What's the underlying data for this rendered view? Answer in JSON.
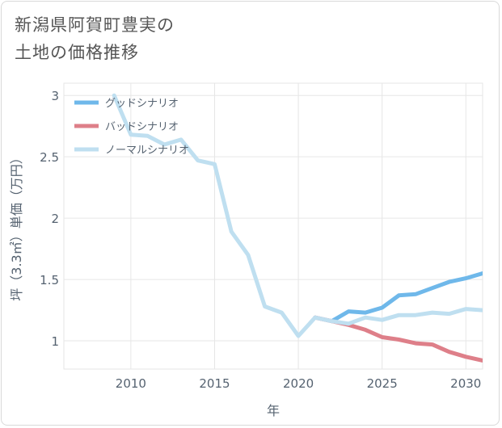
{
  "title": {
    "line1": "新潟県阿賀町豊実の",
    "line2": "土地の価格推移"
  },
  "chart_data": {
    "type": "line",
    "xlabel": "年",
    "ylabel": "坪（3.3㎡）単価（万円）",
    "xlim": [
      2006,
      2031
    ],
    "ylim": [
      0.77,
      3.1
    ],
    "xticks": [
      2010,
      2015,
      2020,
      2025,
      2030
    ],
    "yticks": [
      1,
      1.5,
      2,
      2.5,
      3
    ],
    "ytick_labels": [
      "1",
      "1.5",
      "2",
      "2.5",
      "3"
    ],
    "grid": true,
    "legend_position": "top-left",
    "series": [
      {
        "name": "グッドシナリオ",
        "color": "#6fb8ea",
        "x": [
          2021,
          2022,
          2023,
          2024,
          2025,
          2026,
          2027,
          2028,
          2029,
          2030,
          2031
        ],
        "y": [
          1.19,
          1.16,
          1.24,
          1.23,
          1.27,
          1.37,
          1.38,
          1.43,
          1.48,
          1.51,
          1.55
        ]
      },
      {
        "name": "バッドシナリオ",
        "color": "#de7f89",
        "x": [
          2021,
          2022,
          2023,
          2024,
          2025,
          2026,
          2027,
          2028,
          2029,
          2030,
          2031
        ],
        "y": [
          1.19,
          1.16,
          1.13,
          1.09,
          1.03,
          1.01,
          0.98,
          0.97,
          0.91,
          0.87,
          0.84
        ]
      },
      {
        "name": "ノーマルシナリオ",
        "color": "#bfdff0",
        "x": [
          2009,
          2010,
          2011,
          2012,
          2013,
          2014,
          2015,
          2016,
          2017,
          2018,
          2019,
          2020,
          2021,
          2022,
          2023,
          2024,
          2025,
          2026,
          2027,
          2028,
          2029,
          2030,
          2031
        ],
        "y": [
          3.0,
          2.68,
          2.67,
          2.6,
          2.64,
          2.47,
          2.44,
          1.89,
          1.7,
          1.28,
          1.23,
          1.04,
          1.19,
          1.16,
          1.14,
          1.19,
          1.17,
          1.21,
          1.21,
          1.23,
          1.22,
          1.26,
          1.25
        ]
      }
    ]
  }
}
